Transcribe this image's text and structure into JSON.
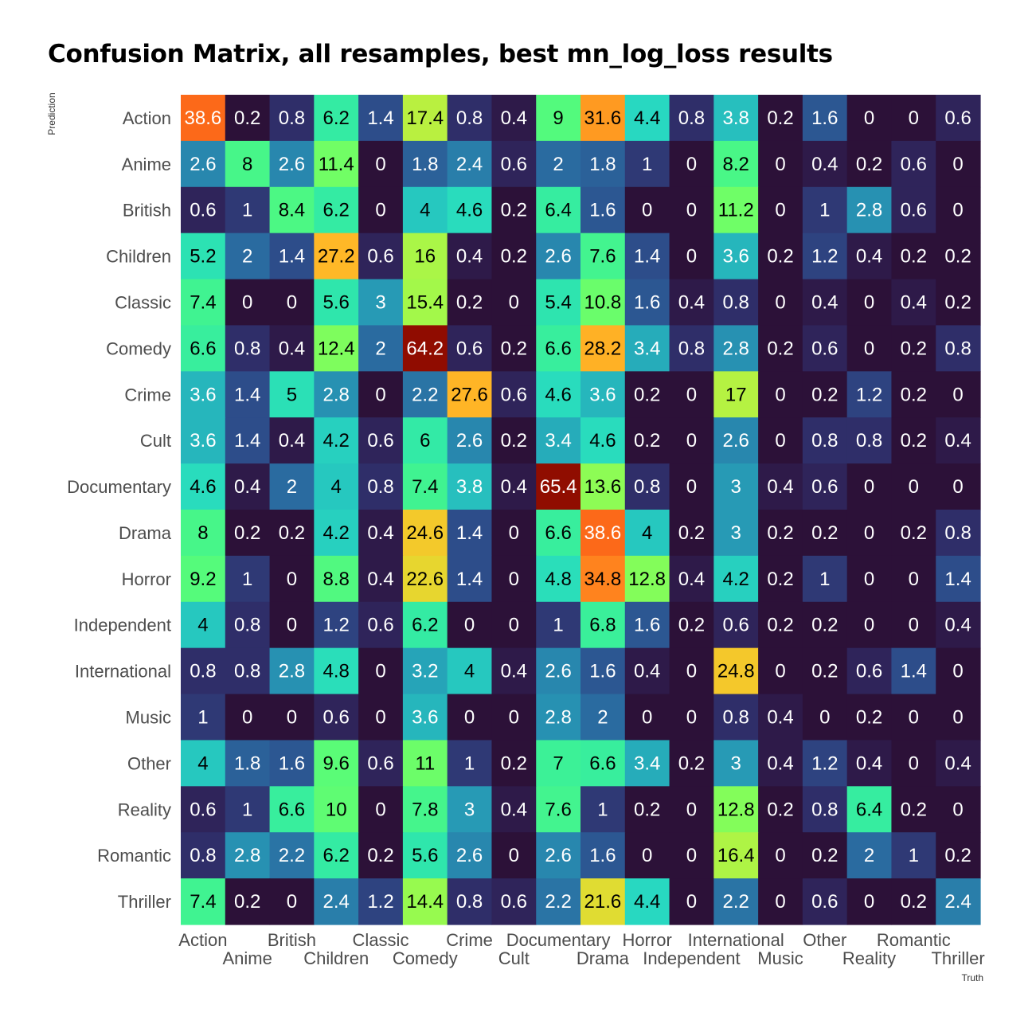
{
  "chart_data": {
    "type": "heatmap",
    "title": "Confusion Matrix, all resamples, best mn_log_loss results",
    "xlabel": "Truth",
    "ylabel": "Prediction",
    "categories": [
      "Action",
      "Anime",
      "British",
      "Children",
      "Classic",
      "Comedy",
      "Crime",
      "Cult",
      "Documentary",
      "Drama",
      "Horror",
      "Independent",
      "International",
      "Music",
      "Other",
      "Reality",
      "Romantic",
      "Thriller"
    ],
    "values": [
      [
        38.6,
        0.2,
        0.8,
        6.2,
        1.4,
        17.4,
        0.8,
        0.4,
        9,
        31.6,
        4.4,
        0.8,
        3.8,
        0.2,
        1.6,
        0,
        0,
        0.6
      ],
      [
        2.6,
        8,
        2.6,
        11.4,
        0,
        1.8,
        2.4,
        0.6,
        2,
        1.8,
        1,
        0,
        8.2,
        0,
        0.4,
        0.2,
        0.6,
        0
      ],
      [
        0.6,
        1,
        8.4,
        6.2,
        0,
        4,
        4.6,
        0.2,
        6.4,
        1.6,
        0,
        0,
        11.2,
        0,
        1,
        2.8,
        0.6,
        0
      ],
      [
        5.2,
        2,
        1.4,
        27.2,
        0.6,
        16,
        0.4,
        0.2,
        2.6,
        7.6,
        1.4,
        0,
        3.6,
        0.2,
        1.2,
        0.4,
        0.2,
        0.2
      ],
      [
        7.4,
        0,
        0,
        5.6,
        3,
        15.4,
        0.2,
        0,
        5.4,
        10.8,
        1.6,
        0.4,
        0.8,
        0,
        0.4,
        0,
        0.4,
        0.2
      ],
      [
        6.6,
        0.8,
        0.4,
        12.4,
        2,
        64.2,
        0.6,
        0.2,
        6.6,
        28.2,
        3.4,
        0.8,
        2.8,
        0.2,
        0.6,
        0,
        0.2,
        0.8
      ],
      [
        3.6,
        1.4,
        5,
        2.8,
        0,
        2.2,
        27.6,
        0.6,
        4.6,
        3.6,
        0.2,
        0,
        17,
        0,
        0.2,
        1.2,
        0.2,
        0
      ],
      [
        3.6,
        1.4,
        0.4,
        4.2,
        0.6,
        6,
        2.6,
        0.2,
        3.4,
        4.6,
        0.2,
        0,
        2.6,
        0,
        0.8,
        0.8,
        0.2,
        0.4
      ],
      [
        4.6,
        0.4,
        2,
        4,
        0.8,
        7.4,
        3.8,
        0.4,
        65.4,
        13.6,
        0.8,
        0,
        3,
        0.4,
        0.6,
        0,
        0,
        0
      ],
      [
        8,
        0.2,
        0.2,
        4.2,
        0.4,
        24.6,
        1.4,
        0,
        6.6,
        38.6,
        4,
        0.2,
        3,
        0.2,
        0.2,
        0,
        0.2,
        0.8
      ],
      [
        9.2,
        1,
        0,
        8.8,
        0.4,
        22.6,
        1.4,
        0,
        4.8,
        34.8,
        12.8,
        0.4,
        4.2,
        0.2,
        1,
        0,
        0,
        1.4
      ],
      [
        4,
        0.8,
        0,
        1.2,
        0.6,
        6.2,
        0,
        0,
        1,
        6.8,
        1.6,
        0.2,
        0.6,
        0.2,
        0.2,
        0,
        0,
        0.4
      ],
      [
        0.8,
        0.8,
        2.8,
        4.8,
        0,
        3.2,
        4,
        0.4,
        2.6,
        1.6,
        0.4,
        0,
        24.8,
        0,
        0.2,
        0.6,
        1.4,
        0
      ],
      [
        1,
        0,
        0,
        0.6,
        0,
        3.6,
        0,
        0,
        2.8,
        2,
        0,
        0,
        0.8,
        0.4,
        0,
        0.2,
        0,
        0
      ],
      [
        4,
        1.8,
        1.6,
        9.6,
        0.6,
        11,
        1,
        0.2,
        7,
        6.6,
        3.4,
        0.2,
        3,
        0.4,
        1.2,
        0.4,
        0,
        0.4
      ],
      [
        0.6,
        1,
        6.6,
        10,
        0,
        7.8,
        3,
        0.4,
        7.6,
        1,
        0.2,
        0,
        12.8,
        0.2,
        0.8,
        6.4,
        0.2,
        0
      ],
      [
        0.8,
        2.8,
        2.2,
        6.2,
        0.2,
        5.6,
        2.6,
        0,
        2.6,
        1.6,
        0,
        0,
        16.4,
        0,
        0.2,
        2,
        1,
        0.2
      ],
      [
        7.4,
        0.2,
        0,
        2.4,
        1.2,
        14.4,
        0.8,
        0.6,
        2.2,
        21.6,
        4.4,
        0,
        2.2,
        0,
        0.6,
        0,
        0.2,
        2.4
      ]
    ],
    "value_range": [
      0,
      65.4
    ],
    "colormap": "turbo",
    "legend": "none",
    "grid": false
  }
}
